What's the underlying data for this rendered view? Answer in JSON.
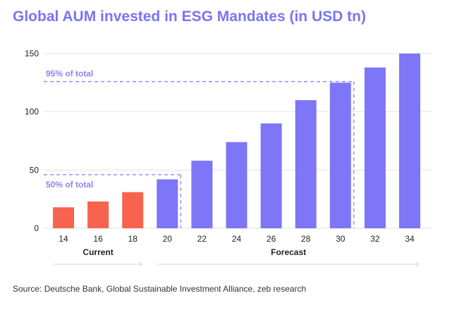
{
  "chart_data": {
    "type": "bar",
    "title": "Global AUM invested in ESG Mandates (in USD tn)",
    "categories": [
      "14",
      "16",
      "18",
      "20",
      "22",
      "24",
      "26",
      "28",
      "30",
      "32",
      "34"
    ],
    "values": [
      18,
      23,
      31,
      42,
      58,
      74,
      90,
      110,
      125,
      138,
      150
    ],
    "group": [
      "Current",
      "Current",
      "Current",
      "Forecast",
      "Forecast",
      "Forecast",
      "Forecast",
      "Forecast",
      "Forecast",
      "Forecast",
      "Forecast"
    ],
    "yticks": [
      0,
      50,
      100,
      150
    ],
    "ylim": [
      0,
      150
    ],
    "grid": "horizontal",
    "groups": [
      {
        "label": "Current",
        "from": 0,
        "to": 2
      },
      {
        "label": "Forecast",
        "from": 3,
        "to": 10
      }
    ],
    "annotations": [
      {
        "label": "50% of total",
        "value": 46,
        "through_index": 3
      },
      {
        "label": "95% of total",
        "value": 126,
        "through_index": 8
      }
    ],
    "colors": {
      "Current": "#f7634f",
      "Forecast": "#7d76f7",
      "annotation": "#8b85f5",
      "grid": "#e3e3e3"
    }
  },
  "source": "Source: Deutsche Bank, Global Sustainable Investment Alliance, zeb research"
}
